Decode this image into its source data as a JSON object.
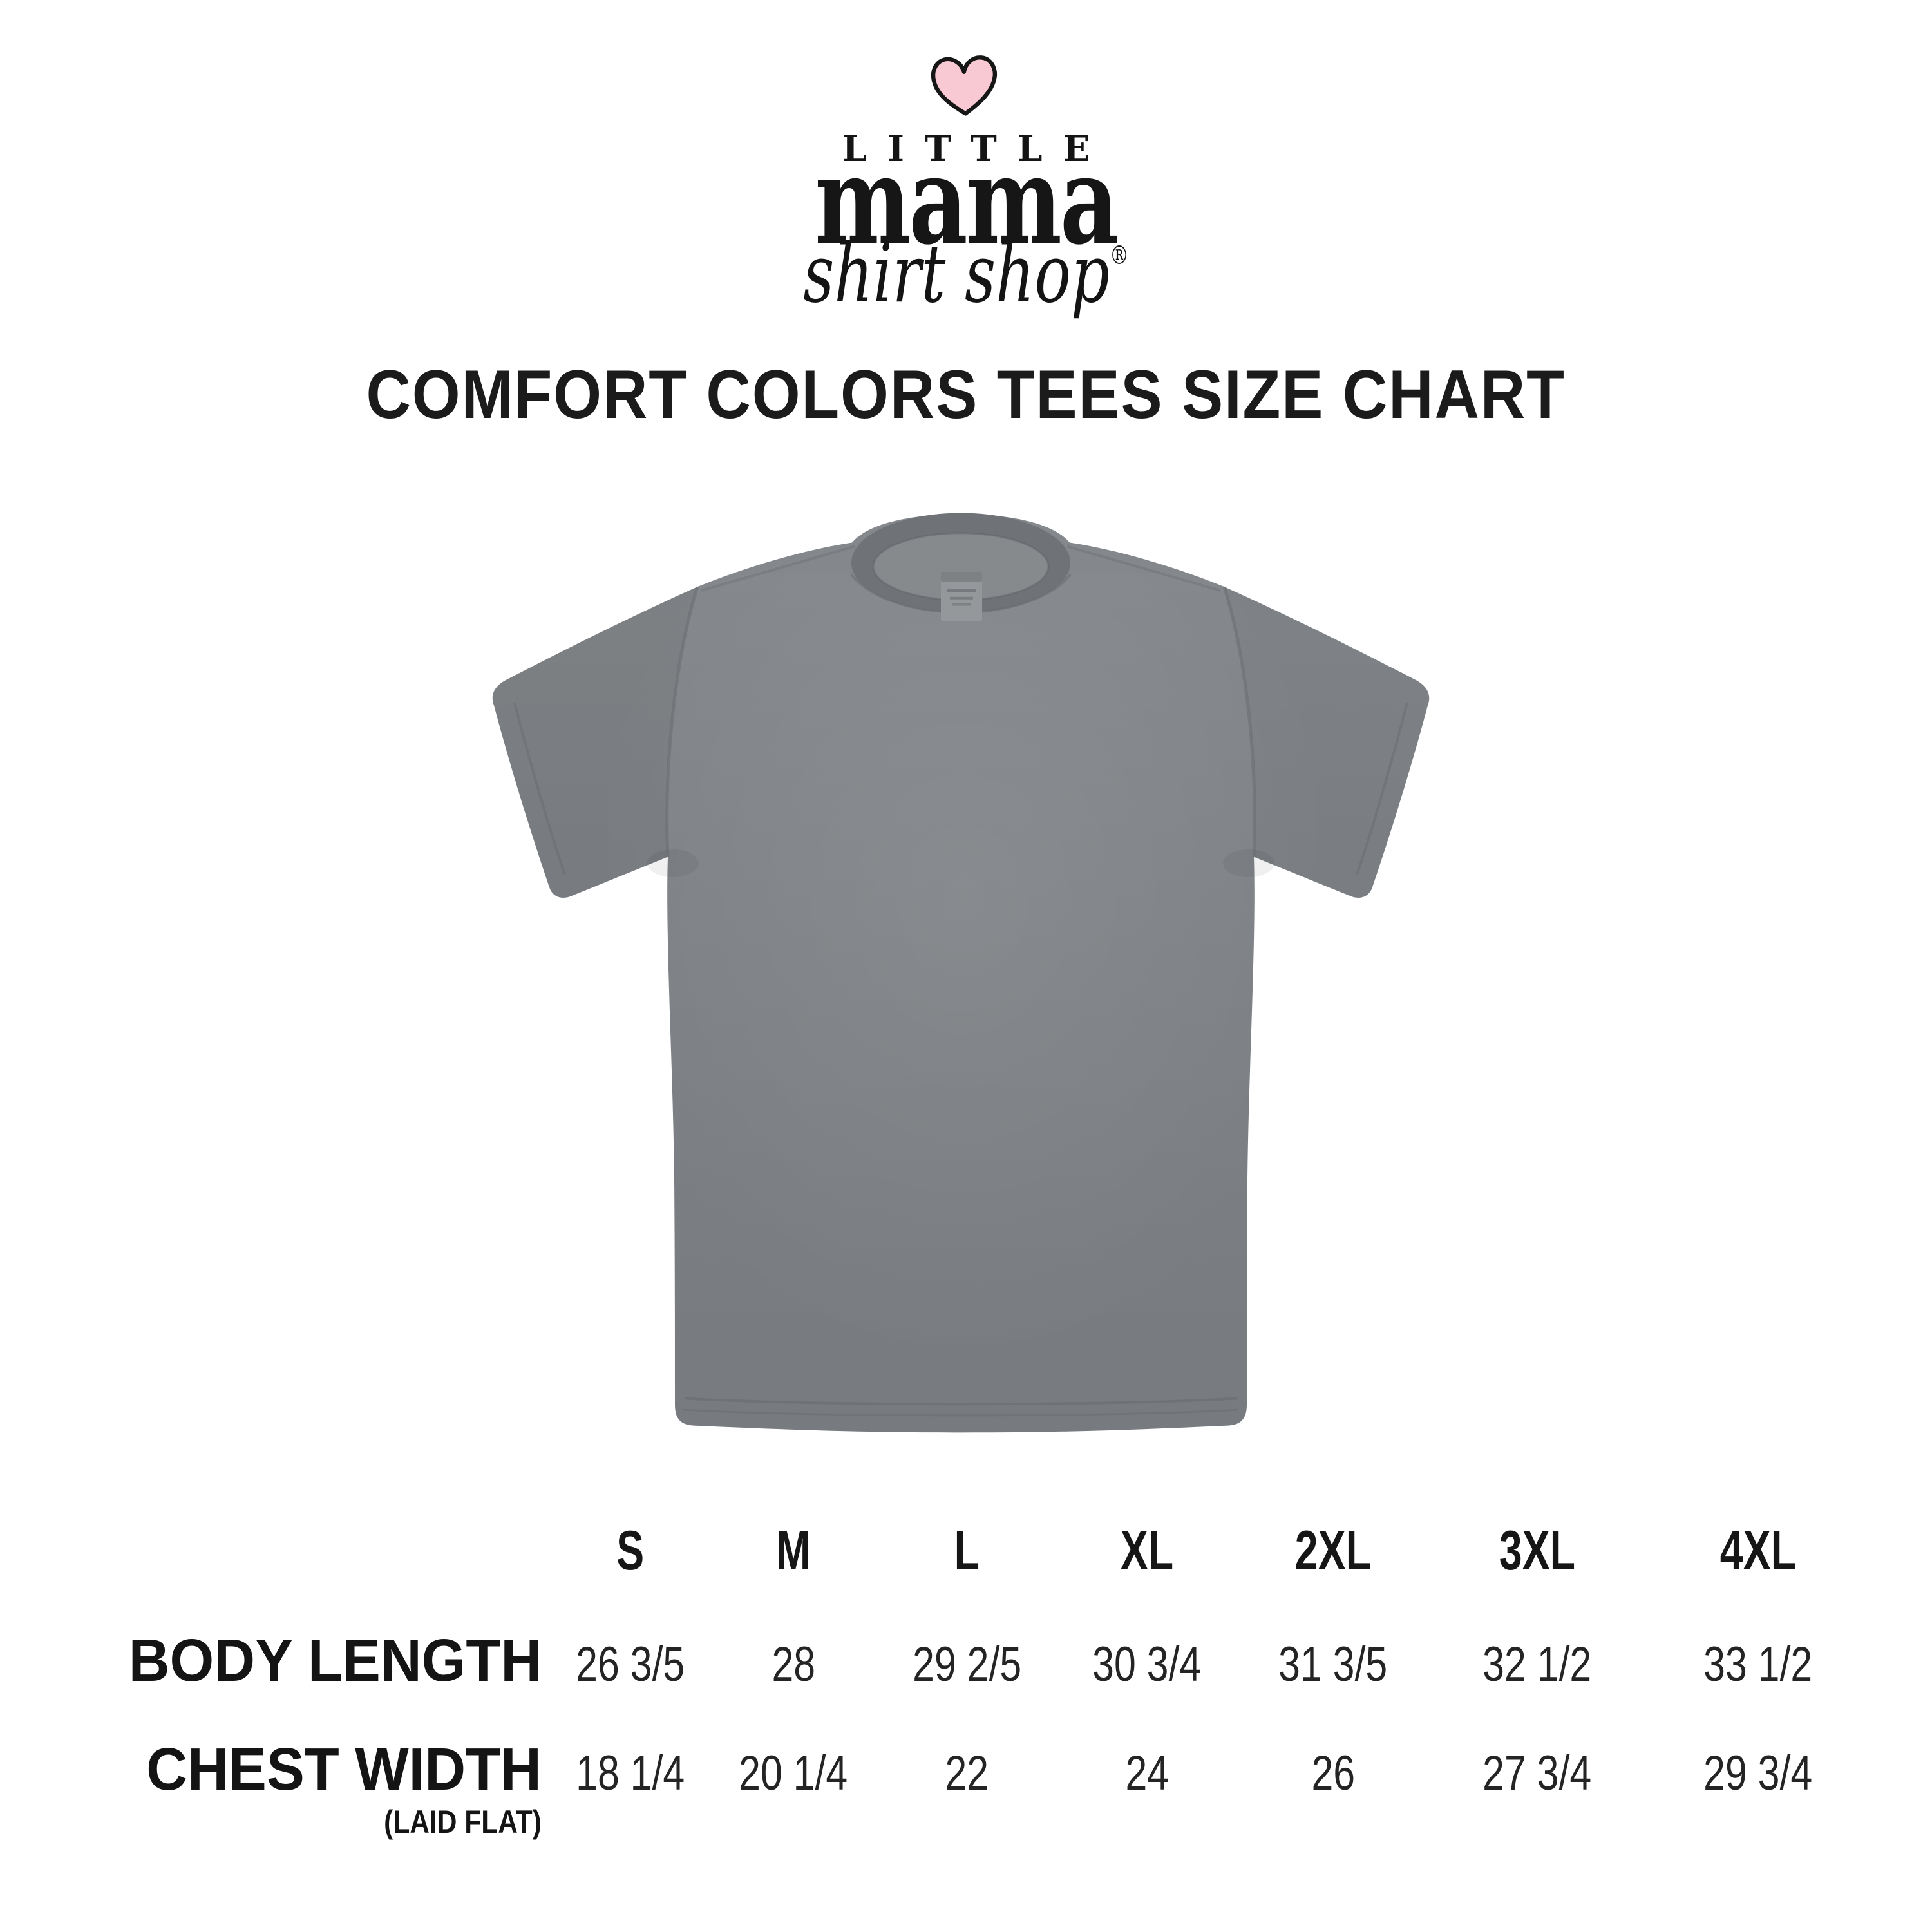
{
  "logo": {
    "word_top": "LITTLE",
    "word_main": "mama",
    "word_script": "shirt shop",
    "registered_mark": "®",
    "heart_color": "#f8c9d2",
    "text_color": "#141414"
  },
  "title": "COMFORT COLORS TEES SIZE CHART",
  "tshirt": {
    "base_color": "#7d8185"
  },
  "chart_data": {
    "type": "table",
    "title": "COMFORT COLORS TEES SIZE CHART",
    "columns": [
      "S",
      "M",
      "L",
      "XL",
      "2XL",
      "3XL",
      "4XL"
    ],
    "rows": [
      {
        "label": "BODY LENGTH",
        "sublabel": "",
        "values": [
          "26 3/5",
          "28",
          "29 2/5",
          "30 3/4",
          "31 3/5",
          "32 1/2",
          "33 1/2"
        ]
      },
      {
        "label": "CHEST WIDTH",
        "sublabel": "(LAID FLAT)",
        "values": [
          "18 1/4",
          "20 1/4",
          "22",
          "24",
          "26",
          "27 3/4",
          "29 3/4"
        ]
      }
    ],
    "legend": "none",
    "grid": "off"
  }
}
